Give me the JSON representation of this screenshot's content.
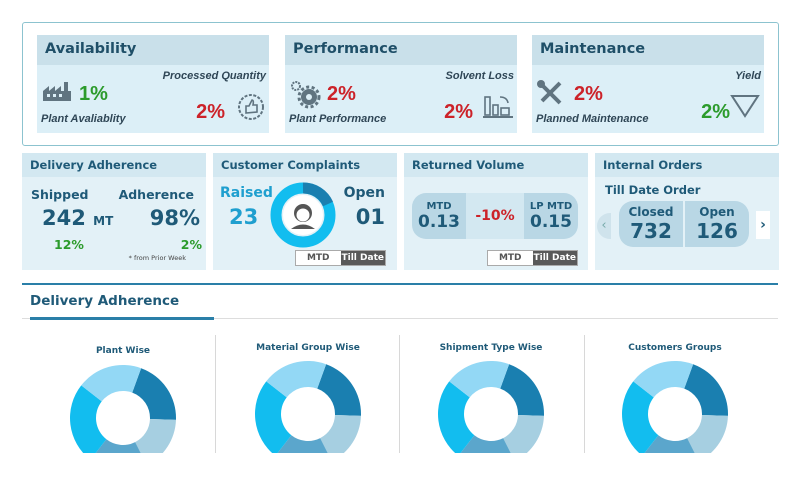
{
  "kpis": [
    {
      "title": "Availability",
      "left_value": "1%",
      "left_label": "Plant Avaliablity",
      "right_label": "Processed Quantity",
      "right_value": "2%",
      "left_icon": "factory-icon",
      "right_icon": "thumbs-up-icon"
    },
    {
      "title": "Performance",
      "left_value": "2%",
      "left_label": "Plant Performance",
      "right_label": "Solvent Loss",
      "right_value": "2%",
      "left_icon": "gears-icon",
      "right_icon": "bar-chart-icon"
    },
    {
      "title": "Maintenance",
      "left_value": "2%",
      "left_label": "Planned Maintenance",
      "right_label": "Yield",
      "right_value": "2%",
      "left_icon": "tools-icon",
      "right_icon": "triangle-down-icon"
    }
  ],
  "delivery": {
    "title": "Delivery Adherence",
    "shipped_label": "Shipped",
    "shipped_value": "242",
    "shipped_unit": "MT",
    "shipped_change": "12%",
    "adherence_label": "Adherence",
    "adherence_value": "98%",
    "adherence_change": "2%",
    "note": "* from Prior Week"
  },
  "complaints": {
    "title": "Customer Complaints",
    "raised_label": "Raised",
    "raised_value": "23",
    "open_label": "Open",
    "open_value": "01",
    "toggle": [
      "MTD",
      "Till Date"
    ],
    "icon": "headset-agent-icon"
  },
  "returned": {
    "title": "Returned Volume",
    "mtd_label": "MTD",
    "mtd_value": "0.13",
    "change": "-10%",
    "lp_label": "LP MTD",
    "lp_value": "0.15",
    "toggle": [
      "MTD",
      "Till Date"
    ]
  },
  "orders": {
    "title": "Internal Orders",
    "subtitle": "Till Date Order",
    "closed_label": "Closed",
    "closed_value": "732",
    "open_label": "Open",
    "open_value": "126"
  },
  "section": {
    "title": "Delivery Adherence"
  },
  "colors": {
    "dark": "#1a7fb0",
    "light_grey_blue": "#a6cfe1",
    "mid": "#5ba6cc",
    "cyan": "#12bdef",
    "light_cyan": "#93d8f5",
    "green": "#2c9b2c",
    "red": "#cc2229"
  },
  "chart_data": [
    {
      "type": "pie",
      "title": "Plant Wise",
      "values": [
        20,
        17,
        18,
        25,
        20
      ]
    },
    {
      "type": "pie",
      "title": "Material Group Wise",
      "values": [
        20,
        17,
        18,
        25,
        20
      ]
    },
    {
      "type": "pie",
      "title": "Shipment Type Wise",
      "values": [
        20,
        17,
        18,
        25,
        20
      ]
    },
    {
      "type": "pie",
      "title": "Customers Groups",
      "values": [
        20,
        17,
        18,
        25,
        20
      ]
    }
  ]
}
